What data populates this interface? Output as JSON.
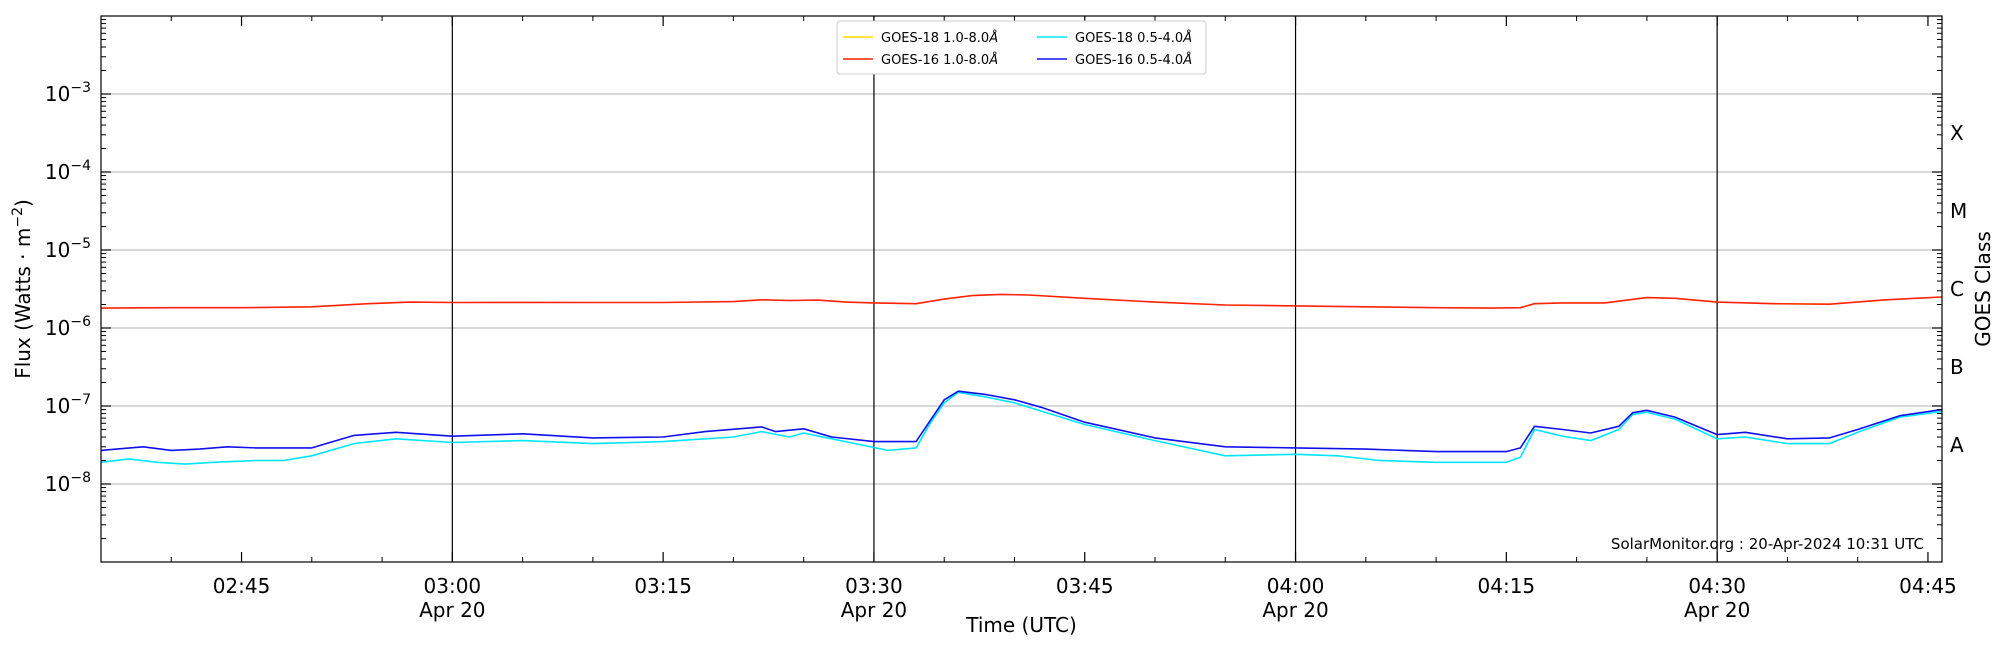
{
  "chart_data": {
    "type": "line",
    "title": "",
    "xlabel": "Time (UTC)",
    "ylabel": "Flux (Watts · m",
    "ylabel_superscript": "−2",
    "ylabel_close": ")",
    "y_right_label": "GOES Class",
    "y_scale": "log",
    "ylim": [
      1e-09,
      0.01
    ],
    "xlim": [
      "2024-04-20T02:35",
      "2024-04-20T04:46"
    ],
    "grid": "horizontal",
    "legend_position": "top-center",
    "credit": "SolarMonitor.org : 20-Apr-2024 10:31 UTC",
    "x_ticks": [
      {
        "time": "2024-04-20T02:45",
        "label": "02:45",
        "sub": ""
      },
      {
        "time": "2024-04-20T03:00",
        "label": "03:00",
        "sub": "Apr 20"
      },
      {
        "time": "2024-04-20T03:15",
        "label": "03:15",
        "sub": ""
      },
      {
        "time": "2024-04-20T03:30",
        "label": "03:30",
        "sub": "Apr 20"
      },
      {
        "time": "2024-04-20T03:45",
        "label": "03:45",
        "sub": ""
      },
      {
        "time": "2024-04-20T04:00",
        "label": "04:00",
        "sub": "Apr 20"
      },
      {
        "time": "2024-04-20T04:15",
        "label": "04:15",
        "sub": ""
      },
      {
        "time": "2024-04-20T04:30",
        "label": "04:30",
        "sub": "Apr 20"
      },
      {
        "time": "2024-04-20T04:45",
        "label": "04:45",
        "sub": ""
      }
    ],
    "vertical_lines": [
      "2024-04-20T03:00",
      "2024-04-20T03:30",
      "2024-04-20T04:00",
      "2024-04-20T04:30"
    ],
    "y_ticks": [
      {
        "value": 1e-08,
        "mantissa": "10",
        "exp": "−8"
      },
      {
        "value": 1e-07,
        "mantissa": "10",
        "exp": "−7"
      },
      {
        "value": 1e-06,
        "mantissa": "10",
        "exp": "−6"
      },
      {
        "value": 1e-05,
        "mantissa": "10",
        "exp": "−5"
      },
      {
        "value": 0.0001,
        "mantissa": "10",
        "exp": "−4"
      },
      {
        "value": 0.001,
        "mantissa": "10",
        "exp": "−3"
      }
    ],
    "goes_classes": [
      {
        "label": "A",
        "value": 3.16e-08
      },
      {
        "label": "B",
        "value": 3.16e-07
      },
      {
        "label": "C",
        "value": 3.16e-06
      },
      {
        "label": "M",
        "value": 3.16e-05
      },
      {
        "label": "X",
        "value": 0.000316
      }
    ],
    "series": [
      {
        "name": "GOES-18 1.0-8.0",
        "unit": "Å",
        "color": "#ffd700",
        "points": []
      },
      {
        "name": "GOES-16 1.0-8.0",
        "unit": "Å",
        "color": "#ff2200",
        "points": [
          [
            "2024-04-20T02:35",
            1.8e-06
          ],
          [
            "2024-04-20T02:40",
            1.82e-06
          ],
          [
            "2024-04-20T02:45",
            1.82e-06
          ],
          [
            "2024-04-20T02:50",
            1.87e-06
          ],
          [
            "2024-04-20T02:54",
            2.05e-06
          ],
          [
            "2024-04-20T02:57",
            2.15e-06
          ],
          [
            "2024-04-20T03:00",
            2.12e-06
          ],
          [
            "2024-04-20T03:05",
            2.13e-06
          ],
          [
            "2024-04-20T03:10",
            2.12e-06
          ],
          [
            "2024-04-20T03:15",
            2.12e-06
          ],
          [
            "2024-04-20T03:20",
            2.18e-06
          ],
          [
            "2024-04-20T03:22",
            2.3e-06
          ],
          [
            "2024-04-20T03:24",
            2.25e-06
          ],
          [
            "2024-04-20T03:26",
            2.28e-06
          ],
          [
            "2024-04-20T03:28",
            2.15e-06
          ],
          [
            "2024-04-20T03:30",
            2.1e-06
          ],
          [
            "2024-04-20T03:33",
            2.05e-06
          ],
          [
            "2024-04-20T03:35",
            2.35e-06
          ],
          [
            "2024-04-20T03:37",
            2.6e-06
          ],
          [
            "2024-04-20T03:39",
            2.7e-06
          ],
          [
            "2024-04-20T03:41",
            2.65e-06
          ],
          [
            "2024-04-20T03:45",
            2.4e-06
          ],
          [
            "2024-04-20T03:50",
            2.15e-06
          ],
          [
            "2024-04-20T03:55",
            1.97e-06
          ],
          [
            "2024-04-20T04:00",
            1.92e-06
          ],
          [
            "2024-04-20T04:05",
            1.87e-06
          ],
          [
            "2024-04-20T04:10",
            1.82e-06
          ],
          [
            "2024-04-20T04:14",
            1.8e-06
          ],
          [
            "2024-04-20T04:16",
            1.82e-06
          ],
          [
            "2024-04-20T04:17",
            2.05e-06
          ],
          [
            "2024-04-20T04:19",
            2.1e-06
          ],
          [
            "2024-04-20T04:22",
            2.1e-06
          ],
          [
            "2024-04-20T04:25",
            2.45e-06
          ],
          [
            "2024-04-20T04:27",
            2.4e-06
          ],
          [
            "2024-04-20T04:30",
            2.15e-06
          ],
          [
            "2024-04-20T04:34",
            2.05e-06
          ],
          [
            "2024-04-20T04:38",
            2.02e-06
          ],
          [
            "2024-04-20T04:42",
            2.3e-06
          ],
          [
            "2024-04-20T04:46",
            2.5e-06
          ]
        ]
      },
      {
        "name": "GOES-18 0.5-4.0",
        "unit": "Å",
        "color": "#00e5ff",
        "points": [
          [
            "2024-04-20T02:35",
            1.9e-08
          ],
          [
            "2024-04-20T02:37",
            2.1e-08
          ],
          [
            "2024-04-20T02:39",
            1.9e-08
          ],
          [
            "2024-04-20T02:41",
            1.8e-08
          ],
          [
            "2024-04-20T02:43",
            1.9e-08
          ],
          [
            "2024-04-20T02:46",
            2e-08
          ],
          [
            "2024-04-20T02:48",
            2e-08
          ],
          [
            "2024-04-20T02:50",
            2.3e-08
          ],
          [
            "2024-04-20T02:53",
            3.3e-08
          ],
          [
            "2024-04-20T02:56",
            3.8e-08
          ],
          [
            "2024-04-20T03:00",
            3.4e-08
          ],
          [
            "2024-04-20T03:05",
            3.6e-08
          ],
          [
            "2024-04-20T03:10",
            3.3e-08
          ],
          [
            "2024-04-20T03:15",
            3.5e-08
          ],
          [
            "2024-04-20T03:20",
            4e-08
          ],
          [
            "2024-04-20T03:22",
            4.7e-08
          ],
          [
            "2024-04-20T03:24",
            4e-08
          ],
          [
            "2024-04-20T03:25",
            4.5e-08
          ],
          [
            "2024-04-20T03:27",
            3.8e-08
          ],
          [
            "2024-04-20T03:29",
            3.2e-08
          ],
          [
            "2024-04-20T03:31",
            2.7e-08
          ],
          [
            "2024-04-20T03:33",
            2.9e-08
          ],
          [
            "2024-04-20T03:34",
            6e-08
          ],
          [
            "2024-04-20T03:35",
            1.1e-07
          ],
          [
            "2024-04-20T03:36",
            1.5e-07
          ],
          [
            "2024-04-20T03:38",
            1.3e-07
          ],
          [
            "2024-04-20T03:40",
            1.1e-07
          ],
          [
            "2024-04-20T03:42",
            8.5e-08
          ],
          [
            "2024-04-20T03:45",
            5.8e-08
          ],
          [
            "2024-04-20T03:50",
            3.6e-08
          ],
          [
            "2024-04-20T03:55",
            2.3e-08
          ],
          [
            "2024-04-20T04:00",
            2.4e-08
          ],
          [
            "2024-04-20T04:03",
            2.3e-08
          ],
          [
            "2024-04-20T04:06",
            2e-08
          ],
          [
            "2024-04-20T04:10",
            1.9e-08
          ],
          [
            "2024-04-20T04:15",
            1.9e-08
          ],
          [
            "2024-04-20T04:16",
            2.2e-08
          ],
          [
            "2024-04-20T04:17",
            5e-08
          ],
          [
            "2024-04-20T04:19",
            4.1e-08
          ],
          [
            "2024-04-20T04:21",
            3.6e-08
          ],
          [
            "2024-04-20T04:23",
            5e-08
          ],
          [
            "2024-04-20T04:24",
            7.8e-08
          ],
          [
            "2024-04-20T04:25",
            8.3e-08
          ],
          [
            "2024-04-20T04:27",
            6.8e-08
          ],
          [
            "2024-04-20T04:30",
            3.8e-08
          ],
          [
            "2024-04-20T04:32",
            4e-08
          ],
          [
            "2024-04-20T04:35",
            3.3e-08
          ],
          [
            "2024-04-20T04:38",
            3.3e-08
          ],
          [
            "2024-04-20T04:40",
            4.6e-08
          ],
          [
            "2024-04-20T04:43",
            7.2e-08
          ],
          [
            "2024-04-20T04:46",
            8.5e-08
          ]
        ]
      },
      {
        "name": "GOES-16 0.5-4.0",
        "unit": "Å",
        "color": "#1010ee",
        "points": [
          [
            "2024-04-20T02:35",
            2.7e-08
          ],
          [
            "2024-04-20T02:38",
            3e-08
          ],
          [
            "2024-04-20T02:40",
            2.7e-08
          ],
          [
            "2024-04-20T02:42",
            2.8e-08
          ],
          [
            "2024-04-20T02:44",
            3e-08
          ],
          [
            "2024-04-20T02:46",
            2.9e-08
          ],
          [
            "2024-04-20T02:50",
            2.9e-08
          ],
          [
            "2024-04-20T02:53",
            4.2e-08
          ],
          [
            "2024-04-20T02:56",
            4.6e-08
          ],
          [
            "2024-04-20T03:00",
            4.1e-08
          ],
          [
            "2024-04-20T03:05",
            4.4e-08
          ],
          [
            "2024-04-20T03:10",
            3.9e-08
          ],
          [
            "2024-04-20T03:15",
            4e-08
          ],
          [
            "2024-04-20T03:18",
            4.7e-08
          ],
          [
            "2024-04-20T03:22",
            5.4e-08
          ],
          [
            "2024-04-20T03:23",
            4.7e-08
          ],
          [
            "2024-04-20T03:25",
            5.1e-08
          ],
          [
            "2024-04-20T03:27",
            4e-08
          ],
          [
            "2024-04-20T03:30",
            3.5e-08
          ],
          [
            "2024-04-20T03:33",
            3.5e-08
          ],
          [
            "2024-04-20T03:34",
            6.5e-08
          ],
          [
            "2024-04-20T03:35",
            1.2e-07
          ],
          [
            "2024-04-20T03:36",
            1.55e-07
          ],
          [
            "2024-04-20T03:38",
            1.4e-07
          ],
          [
            "2024-04-20T03:40",
            1.2e-07
          ],
          [
            "2024-04-20T03:42",
            9.5e-08
          ],
          [
            "2024-04-20T03:45",
            6.2e-08
          ],
          [
            "2024-04-20T03:50",
            3.9e-08
          ],
          [
            "2024-04-20T03:55",
            3e-08
          ],
          [
            "2024-04-20T04:00",
            2.9e-08
          ],
          [
            "2024-04-20T04:05",
            2.8e-08
          ],
          [
            "2024-04-20T04:10",
            2.6e-08
          ],
          [
            "2024-04-20T04:15",
            2.6e-08
          ],
          [
            "2024-04-20T04:16",
            2.9e-08
          ],
          [
            "2024-04-20T04:17",
            5.5e-08
          ],
          [
            "2024-04-20T04:19",
            5e-08
          ],
          [
            "2024-04-20T04:21",
            4.5e-08
          ],
          [
            "2024-04-20T04:23",
            5.5e-08
          ],
          [
            "2024-04-20T04:24",
            8.2e-08
          ],
          [
            "2024-04-20T04:25",
            8.8e-08
          ],
          [
            "2024-04-20T04:27",
            7.2e-08
          ],
          [
            "2024-04-20T04:30",
            4.3e-08
          ],
          [
            "2024-04-20T04:32",
            4.6e-08
          ],
          [
            "2024-04-20T04:35",
            3.8e-08
          ],
          [
            "2024-04-20T04:38",
            3.9e-08
          ],
          [
            "2024-04-20T04:40",
            5e-08
          ],
          [
            "2024-04-20T04:43",
            7.5e-08
          ],
          [
            "2024-04-20T04:46",
            9e-08
          ]
        ]
      }
    ]
  }
}
